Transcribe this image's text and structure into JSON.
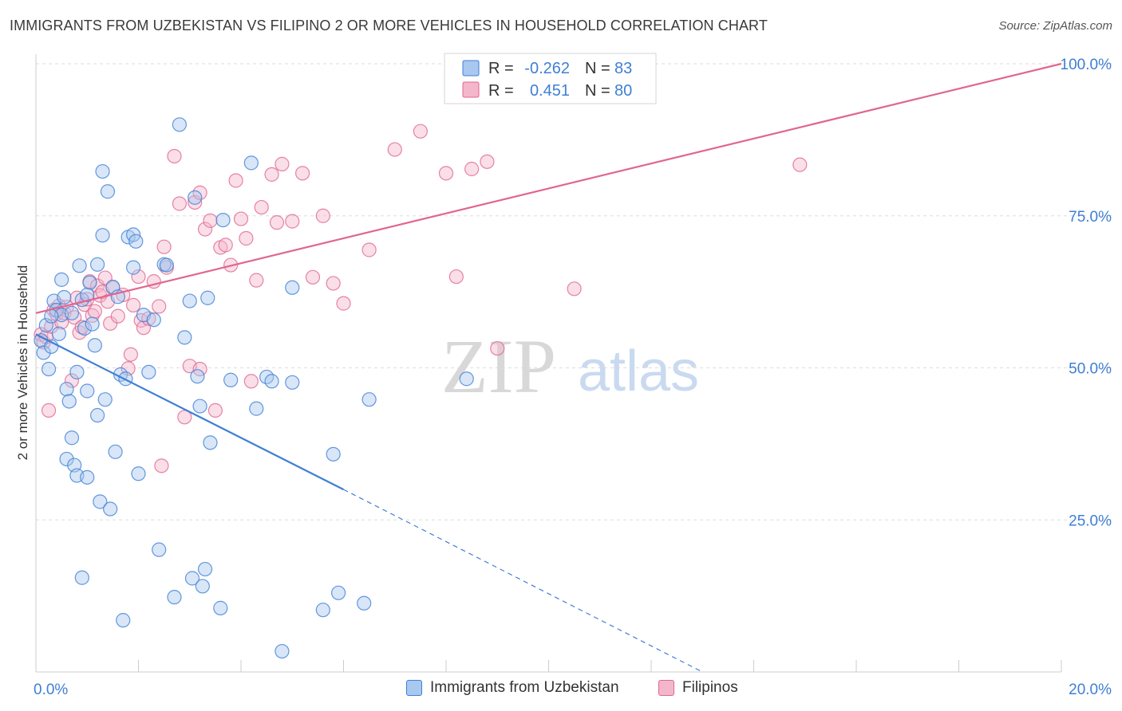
{
  "header": {
    "title": "IMMIGRANTS FROM UZBEKISTAN VS FILIPINO 2 OR MORE VEHICLES IN HOUSEHOLD CORRELATION CHART",
    "source": "Source: ZipAtlas.com"
  },
  "watermark": {
    "zip": "ZIP",
    "atlas": "atlas"
  },
  "colors": {
    "blue": "#3f7fd4",
    "blue_fill": "#a9c8f0",
    "pink": "#e06690",
    "pink_fill": "#f4b6cb",
    "axis_text_blue": "#3f7fd4",
    "grid": "#dddddd"
  },
  "legend": {
    "rows": [
      {
        "r_label": "R =",
        "r_value": "-0.262",
        "n_label": "N =",
        "n_value": "83"
      },
      {
        "r_label": "R =",
        "r_value": "0.451",
        "n_label": "N =",
        "n_value": "80"
      }
    ]
  },
  "chart_data": {
    "type": "scatter",
    "xlabel": "",
    "ylabel": "2 or more Vehicles in Household",
    "xlim": [
      0,
      20
    ],
    "ylim": [
      0,
      100
    ],
    "x_tick_labels": [
      "0.0%",
      "20.0%"
    ],
    "y_tick_labels": [
      "25.0%",
      "50.0%",
      "75.0%",
      "100.0%"
    ],
    "y_ticks": [
      25,
      50,
      75,
      100
    ],
    "grid": true,
    "legend_position": "top-center",
    "series": [
      {
        "name": "Immigrants from Uzbekistan",
        "color": "#3f7fd4",
        "r": -0.262,
        "n": 83,
        "trend": {
          "x": [
            0.0,
            6.0
          ],
          "y": [
            55.5,
            30.0
          ],
          "dashed_to": [
            13.0,
            0.0
          ]
        },
        "points": [
          [
            0.1,
            54.5
          ],
          [
            0.15,
            52.5
          ],
          [
            0.2,
            57.0
          ],
          [
            0.25,
            49.8
          ],
          [
            0.3,
            53.5
          ],
          [
            0.35,
            61.0
          ],
          [
            0.4,
            59.5
          ],
          [
            0.45,
            55.6
          ],
          [
            0.5,
            58.7
          ],
          [
            0.55,
            61.6
          ],
          [
            0.6,
            46.5
          ],
          [
            0.6,
            35.0
          ],
          [
            0.65,
            44.5
          ],
          [
            0.7,
            38.5
          ],
          [
            0.7,
            59.0
          ],
          [
            0.75,
            34.0
          ],
          [
            0.8,
            49.3
          ],
          [
            0.8,
            32.3
          ],
          [
            0.85,
            66.8
          ],
          [
            0.9,
            61.2
          ],
          [
            0.95,
            56.5
          ],
          [
            1.0,
            46.2
          ],
          [
            1.0,
            32.0
          ],
          [
            1.05,
            64.0
          ],
          [
            1.1,
            57.2
          ],
          [
            1.15,
            53.7
          ],
          [
            1.2,
            42.2
          ],
          [
            1.25,
            28.0
          ],
          [
            1.3,
            71.8
          ],
          [
            1.3,
            82.3
          ],
          [
            1.35,
            44.8
          ],
          [
            1.4,
            79.0
          ],
          [
            1.45,
            26.8
          ],
          [
            1.5,
            63.3
          ],
          [
            1.55,
            36.2
          ],
          [
            1.6,
            61.7
          ],
          [
            1.65,
            48.9
          ],
          [
            1.7,
            8.5
          ],
          [
            1.75,
            48.2
          ],
          [
            1.8,
            71.5
          ],
          [
            1.9,
            66.5
          ],
          [
            1.9,
            71.9
          ],
          [
            1.95,
            70.8
          ],
          [
            2.0,
            32.6
          ],
          [
            2.1,
            58.7
          ],
          [
            2.2,
            49.3
          ],
          [
            2.3,
            57.9
          ],
          [
            2.4,
            20.1
          ],
          [
            2.5,
            67.0
          ],
          [
            2.55,
            66.9
          ],
          [
            2.7,
            12.3
          ],
          [
            2.8,
            90.0
          ],
          [
            2.9,
            55.0
          ],
          [
            3.0,
            61.0
          ],
          [
            3.05,
            15.4
          ],
          [
            3.1,
            78.0
          ],
          [
            3.15,
            48.6
          ],
          [
            3.2,
            43.7
          ],
          [
            3.25,
            14.1
          ],
          [
            3.3,
            16.9
          ],
          [
            3.35,
            61.5
          ],
          [
            3.4,
            37.7
          ],
          [
            3.6,
            10.5
          ],
          [
            3.65,
            74.3
          ],
          [
            3.8,
            48.0
          ],
          [
            4.2,
            83.7
          ],
          [
            4.3,
            43.3
          ],
          [
            4.5,
            48.5
          ],
          [
            4.6,
            47.8
          ],
          [
            4.8,
            3.4
          ],
          [
            5.0,
            47.6
          ],
          [
            5.0,
            63.2
          ],
          [
            5.6,
            10.2
          ],
          [
            5.8,
            35.8
          ],
          [
            5.9,
            13.0
          ],
          [
            6.4,
            11.3
          ],
          [
            6.5,
            44.8
          ],
          [
            8.4,
            48.2
          ],
          [
            0.9,
            15.5
          ],
          [
            0.3,
            58.5
          ],
          [
            0.5,
            64.5
          ],
          [
            1.0,
            62.0
          ],
          [
            1.2,
            67.0
          ]
        ]
      },
      {
        "name": "Filipinos",
        "color": "#e06690",
        "r": 0.451,
        "n": 80,
        "trend": {
          "x": [
            0.0,
            20.0
          ],
          "y": [
            59.0,
            100.0
          ]
        },
        "points": [
          [
            0.1,
            55.5
          ],
          [
            0.15,
            54.2
          ],
          [
            0.2,
            55.1
          ],
          [
            0.25,
            43.0
          ],
          [
            0.3,
            56.8
          ],
          [
            0.35,
            59.5
          ],
          [
            0.4,
            58.9
          ],
          [
            0.45,
            60.2
          ],
          [
            0.5,
            57.5
          ],
          [
            0.55,
            59.0
          ],
          [
            0.6,
            60.0
          ],
          [
            0.7,
            47.9
          ],
          [
            0.75,
            58.3
          ],
          [
            0.8,
            61.5
          ],
          [
            0.85,
            55.8
          ],
          [
            0.9,
            56.7
          ],
          [
            0.95,
            60.4
          ],
          [
            1.0,
            61.3
          ],
          [
            1.05,
            64.2
          ],
          [
            1.1,
            58.6
          ],
          [
            1.15,
            59.3
          ],
          [
            1.2,
            63.5
          ],
          [
            1.25,
            61.9
          ],
          [
            1.3,
            62.5
          ],
          [
            1.35,
            64.8
          ],
          [
            1.4,
            60.9
          ],
          [
            1.45,
            57.3
          ],
          [
            1.5,
            63.2
          ],
          [
            1.6,
            58.5
          ],
          [
            1.7,
            62.0
          ],
          [
            1.8,
            49.9
          ],
          [
            1.85,
            52.2
          ],
          [
            1.9,
            60.3
          ],
          [
            2.0,
            65.0
          ],
          [
            2.05,
            57.8
          ],
          [
            2.1,
            56.6
          ],
          [
            2.2,
            58.1
          ],
          [
            2.3,
            64.2
          ],
          [
            2.4,
            60.1
          ],
          [
            2.45,
            33.9
          ],
          [
            2.5,
            69.9
          ],
          [
            2.55,
            66.5
          ],
          [
            2.7,
            84.8
          ],
          [
            2.8,
            77.0
          ],
          [
            2.9,
            41.9
          ],
          [
            3.0,
            50.3
          ],
          [
            3.1,
            77.2
          ],
          [
            3.2,
            78.8
          ],
          [
            3.3,
            72.8
          ],
          [
            3.4,
            74.2
          ],
          [
            3.5,
            43.0
          ],
          [
            3.6,
            69.8
          ],
          [
            3.7,
            70.2
          ],
          [
            3.8,
            66.9
          ],
          [
            3.9,
            80.8
          ],
          [
            4.0,
            74.5
          ],
          [
            4.1,
            71.3
          ],
          [
            4.2,
            47.8
          ],
          [
            4.3,
            64.4
          ],
          [
            4.4,
            76.4
          ],
          [
            4.6,
            81.8
          ],
          [
            4.7,
            73.9
          ],
          [
            4.8,
            83.5
          ],
          [
            5.0,
            74.1
          ],
          [
            5.2,
            82.0
          ],
          [
            5.4,
            64.9
          ],
          [
            5.6,
            75.0
          ],
          [
            5.8,
            63.9
          ],
          [
            6.0,
            60.6
          ],
          [
            6.5,
            69.4
          ],
          [
            7.0,
            85.9
          ],
          [
            7.5,
            88.9
          ],
          [
            8.0,
            82.0
          ],
          [
            8.2,
            65.0
          ],
          [
            8.5,
            82.7
          ],
          [
            8.8,
            83.9
          ],
          [
            9.0,
            53.2
          ],
          [
            10.5,
            63.0
          ],
          [
            14.9,
            83.4
          ],
          [
            3.2,
            49.8
          ]
        ]
      }
    ]
  }
}
